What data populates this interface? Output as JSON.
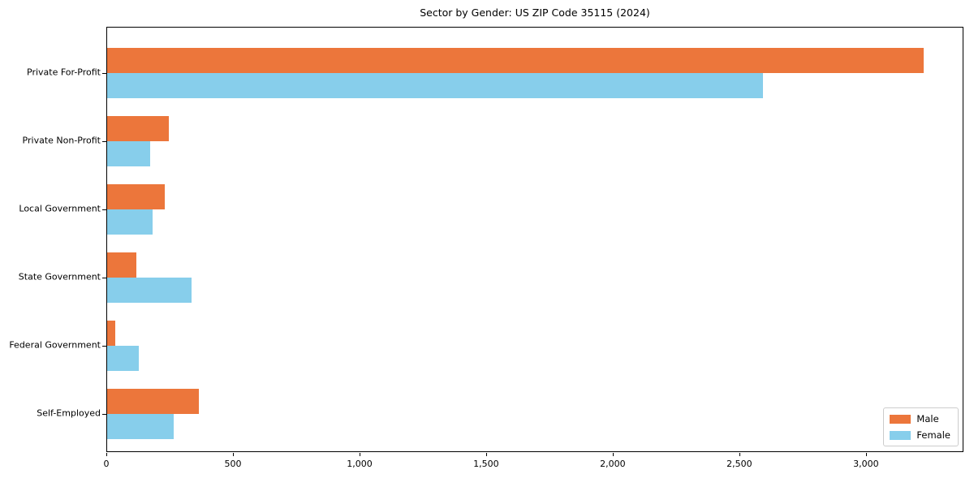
{
  "title": "Sector by Gender: US ZIP Code 35115 (2024)",
  "chart_data": {
    "type": "bar",
    "orientation": "horizontal",
    "title": "Sector by Gender: US ZIP Code 35115 (2024)",
    "categories": [
      "Private For-Profit",
      "Private Non-Profit",
      "Local Government",
      "State Government",
      "Federal Government",
      "Self-Employed"
    ],
    "series": [
      {
        "name": "Male",
        "color": "#EC763B",
        "values": [
          3225,
          245,
          227,
          116,
          32,
          363
        ]
      },
      {
        "name": "Female",
        "color": "#87CEEB",
        "values": [
          2590,
          170,
          179,
          334,
          125,
          263
        ]
      }
    ],
    "xlabel": "",
    "ylabel": "",
    "xlim": [
      0,
      3385
    ],
    "x_ticks": [
      0,
      500,
      1000,
      1500,
      2000,
      2500,
      3000
    ],
    "x_tick_labels": [
      "0",
      "500",
      "1,000",
      "1,500",
      "2,000",
      "2,500",
      "3,000"
    ],
    "grid": false,
    "legend_position": "lower right"
  }
}
